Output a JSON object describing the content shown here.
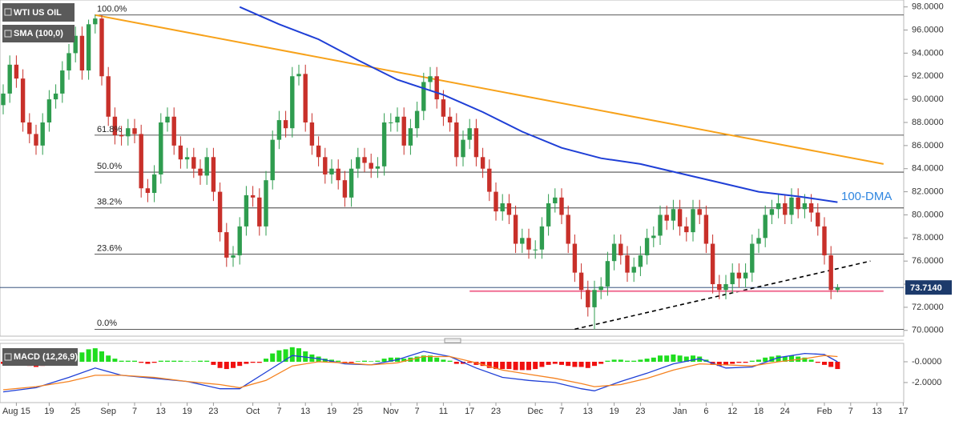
{
  "chart_data": [
    {
      "type": "candlestick",
      "title": "WTI US OIL",
      "categories": [
        null,
        null,
        "Aug 15",
        null,
        null,
        null,
        null,
        "19",
        null,
        null,
        null,
        "25",
        null,
        null,
        null,
        null,
        "Sep",
        null,
        null,
        null,
        "7",
        null,
        null,
        null,
        "13",
        null,
        null,
        null,
        "19",
        null,
        null,
        null,
        "23",
        null,
        null,
        null,
        null,
        null,
        "Oct",
        null,
        null,
        null,
        "7",
        null,
        null,
        null,
        "13",
        null,
        null,
        null,
        "19",
        null,
        null,
        null,
        "25",
        null,
        null,
        null,
        null,
        "Nov",
        null,
        null,
        null,
        "7",
        null,
        null,
        null,
        "11",
        null,
        null,
        null,
        "17",
        null,
        null,
        null,
        "23",
        null,
        null,
        null,
        null,
        null,
        "Dec",
        null,
        null,
        null,
        "7",
        null,
        null,
        null,
        "13",
        null,
        null,
        null,
        "19",
        null,
        null,
        null,
        "23",
        null,
        null,
        null,
        null,
        null,
        "Jan",
        null,
        null,
        null,
        "6",
        null,
        null,
        null,
        "12",
        null,
        null,
        null,
        "18",
        null,
        null,
        null,
        "24",
        null,
        null,
        null,
        null,
        null,
        "Feb",
        null,
        null,
        null,
        "7",
        null,
        null,
        null,
        "13",
        null,
        null,
        null,
        "17"
      ],
      "open": [
        89.5,
        90.5,
        93.0,
        91.8,
        88.0,
        87.0,
        86.0,
        88.0,
        90.0,
        90.5,
        92.5,
        94.0,
        95.5,
        92.5,
        96.5,
        97.0,
        92.0,
        88.5,
        86.9,
        86.8,
        87.5,
        87.0,
        82.3,
        81.9,
        83.5,
        88.0,
        88.5,
        86.0,
        84.8,
        85.0,
        84.0,
        83.4,
        85.0,
        82.0,
        78.5,
        76.3,
        76.5,
        79.0,
        81.7,
        81.5,
        79.0,
        83.0,
        86.5,
        88.2,
        87.5,
        92.0,
        92.2,
        88.0,
        86.0,
        85.0,
        83.5,
        84.0,
        83.0,
        81.5,
        84.0,
        85.0,
        84.5,
        84.0,
        84.2,
        88.0,
        88.0,
        88.5,
        86.0,
        87.5,
        89.0,
        91.5,
        92.0,
        90.0,
        88.5,
        88.0,
        85.0,
        86.5,
        87.5,
        85.0,
        84.0,
        82.0,
        80.3,
        81.0,
        80.0,
        77.5,
        78.0,
        77.0,
        77.0,
        79.0,
        81.0,
        81.5,
        80.0,
        77.5,
        75.0,
        73.5,
        72.0,
        73.5,
        73.8,
        76.0,
        77.5,
        76.5,
        75.0,
        75.5,
        76.5,
        78.0,
        78.2,
        80.0,
        79.5,
        80.5,
        79.0,
        78.5,
        80.5,
        80.0,
        77.5,
        74.0,
        73.5,
        74.0,
        75.0,
        74.5,
        75.0,
        77.5,
        78.0,
        80.0,
        80.5,
        81.0,
        80.0,
        81.5,
        80.5,
        81.0,
        80.2,
        79.0,
        76.5,
        73.5,
        null,
        null,
        null,
        null,
        null,
        null,
        null,
        null,
        null,
        null
      ],
      "high": [
        91.3,
        93.8,
        93.8,
        92.6,
        88.8,
        87.8,
        88.8,
        90.8,
        91.3,
        93.3,
        94.8,
        96.3,
        96.3,
        96.9,
        97.3,
        97.3,
        92.8,
        89.3,
        87.7,
        88.3,
        88.3,
        87.8,
        83.1,
        84.3,
        88.8,
        89.3,
        89.3,
        86.8,
        85.8,
        85.8,
        84.8,
        85.8,
        85.8,
        82.8,
        79.3,
        77.3,
        79.8,
        82.5,
        82.5,
        82.3,
        83.8,
        87.3,
        89.0,
        89.0,
        92.8,
        93.0,
        93.0,
        88.8,
        86.8,
        85.8,
        84.8,
        84.8,
        83.8,
        84.8,
        85.8,
        85.8,
        85.3,
        85.0,
        88.8,
        88.8,
        89.3,
        89.3,
        88.3,
        89.8,
        92.3,
        92.8,
        92.8,
        90.8,
        89.3,
        88.8,
        87.3,
        88.3,
        88.3,
        85.8,
        84.8,
        82.8,
        81.8,
        81.8,
        80.8,
        78.8,
        78.8,
        77.8,
        79.8,
        81.8,
        82.3,
        82.3,
        80.8,
        78.3,
        75.8,
        74.3,
        74.3,
        74.6,
        76.8,
        78.3,
        78.3,
        77.3,
        76.3,
        77.3,
        78.8,
        79.0,
        80.8,
        80.8,
        81.3,
        81.3,
        79.8,
        81.3,
        81.3,
        80.8,
        78.3,
        74.8,
        74.8,
        75.8,
        75.8,
        75.8,
        78.3,
        78.8,
        80.8,
        81.3,
        81.8,
        81.8,
        82.3,
        82.3,
        81.8,
        81.8,
        81.0,
        79.8,
        77.3,
        74.0,
        null,
        null,
        null,
        null,
        null,
        null,
        null,
        null,
        null,
        null
      ],
      "low": [
        88.7,
        89.7,
        91.0,
        87.2,
        86.2,
        85.2,
        85.2,
        87.2,
        89.2,
        89.7,
        91.7,
        93.2,
        91.7,
        91.7,
        95.7,
        91.2,
        87.7,
        86.1,
        86.0,
        86.0,
        86.2,
        81.5,
        81.1,
        81.1,
        82.7,
        87.2,
        85.2,
        84.0,
        84.0,
        83.2,
        82.6,
        82.6,
        81.2,
        77.7,
        75.5,
        75.5,
        75.7,
        78.2,
        80.7,
        78.2,
        78.2,
        82.2,
        85.7,
        86.7,
        86.7,
        91.2,
        87.2,
        85.2,
        84.2,
        82.7,
        82.7,
        82.2,
        80.7,
        80.7,
        83.2,
        83.7,
        83.2,
        83.2,
        83.4,
        87.2,
        87.2,
        85.2,
        85.2,
        86.7,
        88.2,
        90.7,
        89.2,
        87.7,
        87.2,
        84.2,
        84.2,
        85.7,
        84.2,
        83.2,
        81.2,
        79.5,
        79.5,
        79.2,
        76.7,
        76.7,
        76.2,
        76.2,
        76.2,
        78.2,
        80.2,
        79.2,
        76.7,
        74.2,
        72.7,
        71.2,
        70.1,
        72.7,
        73.0,
        75.2,
        75.7,
        74.2,
        74.2,
        74.7,
        75.7,
        77.2,
        77.4,
        78.7,
        78.7,
        78.2,
        77.7,
        77.7,
        79.2,
        76.7,
        73.2,
        72.7,
        72.7,
        73.2,
        73.7,
        73.7,
        74.2,
        76.7,
        77.2,
        79.2,
        79.7,
        79.2,
        79.2,
        79.7,
        79.7,
        79.4,
        78.2,
        75.7,
        72.7,
        73.3,
        null,
        null,
        null,
        null,
        null,
        null,
        null,
        null,
        null,
        null
      ],
      "close": [
        90.5,
        93.0,
        91.8,
        88.0,
        87.0,
        86.0,
        88.0,
        90.0,
        90.5,
        92.5,
        94.0,
        95.5,
        92.5,
        96.5,
        97.0,
        92.0,
        88.5,
        86.9,
        86.8,
        87.5,
        87.0,
        82.3,
        81.9,
        83.5,
        88.0,
        88.5,
        86.0,
        84.8,
        85.0,
        84.0,
        83.4,
        85.0,
        82.0,
        78.5,
        76.3,
        76.5,
        79.0,
        81.7,
        81.5,
        79.0,
        83.0,
        86.5,
        88.2,
        87.5,
        92.0,
        92.2,
        88.0,
        86.0,
        85.0,
        83.5,
        84.0,
        83.0,
        81.5,
        84.0,
        85.0,
        84.5,
        84.0,
        84.2,
        88.0,
        88.0,
        88.5,
        86.0,
        87.5,
        89.0,
        91.5,
        92.0,
        90.0,
        88.5,
        88.0,
        85.0,
        86.5,
        87.5,
        85.0,
        84.0,
        82.0,
        80.3,
        81.0,
        80.0,
        77.5,
        78.0,
        77.0,
        77.0,
        79.0,
        81.0,
        81.5,
        80.0,
        77.5,
        75.0,
        73.5,
        72.0,
        73.5,
        73.8,
        76.0,
        77.5,
        76.5,
        75.0,
        75.5,
        76.5,
        78.0,
        78.2,
        80.0,
        79.5,
        80.5,
        79.0,
        78.5,
        80.5,
        80.0,
        77.5,
        74.0,
        73.5,
        74.0,
        75.0,
        74.5,
        75.0,
        77.5,
        78.0,
        80.0,
        80.5,
        81.0,
        80.0,
        81.5,
        80.5,
        81.0,
        80.2,
        79.0,
        76.5,
        73.5,
        73.714,
        null,
        null,
        null,
        null,
        null,
        null,
        null,
        null,
        null,
        null
      ],
      "up_color": "#2f9c4f",
      "down_color": "#c8302a",
      "ylim": [
        69.5,
        98.6
      ],
      "yticks": [
        {
          "value": 70,
          "label": "70.0000"
        },
        {
          "value": 72,
          "label": "72.0000"
        },
        {
          "value": 74,
          "label": "74.0000"
        },
        {
          "value": 76,
          "label": "76.0000"
        },
        {
          "value": 78,
          "label": "78.0000"
        },
        {
          "value": 80,
          "label": "80.0000"
        },
        {
          "value": 82,
          "label": "82.0000"
        },
        {
          "value": 84,
          "label": "84.0000"
        },
        {
          "value": 86,
          "label": "86.0000"
        },
        {
          "value": 88,
          "label": "88.0000"
        },
        {
          "value": 90,
          "label": "90.0000"
        },
        {
          "value": 92,
          "label": "92.0000"
        },
        {
          "value": 94,
          "label": "94.0000"
        },
        {
          "value": 96,
          "label": "96.0000"
        },
        {
          "value": 98,
          "label": "98.0000"
        }
      ],
      "series": [
        {
          "name": "SMA (100,0)",
          "color": "#1f3fd6",
          "x": [
            36,
            42,
            48,
            54,
            60,
            67,
            73,
            79,
            85,
            91,
            97,
            103,
            109,
            115,
            121,
            127
          ],
          "values": [
            98.0,
            96.5,
            95.2,
            93.4,
            91.7,
            90.4,
            88.9,
            87.2,
            85.8,
            84.9,
            84.4,
            83.6,
            82.8,
            82.0,
            81.6,
            81.1
          ]
        }
      ],
      "annotation": "100-DMA",
      "fibonacci": [
        {
          "label": "100.0%",
          "value": 97.3
        },
        {
          "label": "61.8%",
          "value": 86.9
        },
        {
          "label": "50.0%",
          "value": 83.7
        },
        {
          "label": "38.2%",
          "value": 80.6
        },
        {
          "label": "23.6%",
          "value": 76.6
        },
        {
          "label": "0.0%",
          "value": 70.1
        }
      ],
      "trendlines": [
        {
          "x": [
            14,
            134
          ],
          "values": [
            97.3,
            84.4
          ],
          "color": "#f7a21b",
          "style": "solid"
        },
        {
          "x": [
            87,
            132
          ],
          "values": [
            70.1,
            76.0
          ],
          "color": "#000000",
          "style": "dashed"
        },
        {
          "x": [
            71,
            134
          ],
          "values": [
            73.4,
            73.4
          ],
          "color": "#f06f93",
          "style": "solid"
        }
      ],
      "last_price": {
        "value": 73.714,
        "label": "73.7140"
      }
    },
    {
      "type": "macd",
      "title": "MACD (12,26,9)",
      "histogram": [
        -0.2,
        -0.1,
        0.1,
        -0.3,
        -0.4,
        -0.5,
        -0.4,
        -0.3,
        -0.1,
        0.2,
        0.5,
        0.8,
        0.9,
        1.2,
        1.3,
        1.0,
        0.6,
        0.3,
        0.1,
        0.1,
        0.1,
        -0.1,
        -0.2,
        -0.1,
        0.1,
        0.1,
        0.1,
        0.1,
        0.05,
        0.05,
        0.1,
        0.1,
        -0.3,
        -0.6,
        -0.7,
        -0.6,
        -0.4,
        -0.2,
        -0.1,
        -0.1,
        0.3,
        0.8,
        1.1,
        1.2,
        1.4,
        1.3,
        1.0,
        0.7,
        0.5,
        0.3,
        0.2,
        0.1,
        -0.1,
        -0.1,
        0.05,
        0.1,
        0.05,
        0.1,
        0.3,
        0.4,
        0.4,
        0.3,
        0.4,
        0.5,
        0.6,
        0.6,
        0.4,
        0.2,
        0.1,
        -0.2,
        -0.2,
        -0.1,
        -0.3,
        -0.4,
        -0.6,
        -0.7,
        -0.7,
        -0.7,
        -0.8,
        -0.8,
        -0.8,
        -0.7,
        -0.5,
        -0.3,
        -0.2,
        -0.3,
        -0.4,
        -0.5,
        -0.5,
        -0.6,
        -0.4,
        -0.2,
        0.1,
        0.2,
        0.2,
        0.1,
        0.1,
        0.2,
        0.3,
        0.4,
        0.6,
        0.6,
        0.7,
        0.6,
        0.5,
        0.6,
        0.5,
        0.2,
        -0.3,
        -0.4,
        -0.3,
        -0.2,
        -0.1,
        -0.1,
        0.1,
        0.2,
        0.4,
        0.5,
        0.6,
        0.5,
        0.6,
        0.5,
        0.4,
        0.2,
        -0.1,
        -0.3,
        -0.5,
        -0.7,
        null,
        null,
        null,
        null,
        null,
        null,
        null,
        null,
        null,
        null
      ],
      "up_color": "#1fdd1f",
      "down_color": "#f01010",
      "series": [
        {
          "color": "#1f3fd6",
          "x": [
            0,
            5,
            10,
            14,
            18,
            23,
            28,
            33,
            36,
            40,
            44,
            48,
            52,
            56,
            60,
            64,
            68,
            72,
            76,
            80,
            84,
            88,
            90,
            94,
            98,
            102,
            106,
            110,
            114,
            118,
            122,
            125,
            127
          ],
          "values": [
            -2.9,
            -2.5,
            -1.5,
            -0.6,
            -1.3,
            -1.6,
            -1.9,
            -2.6,
            -2.6,
            -1.0,
            0.6,
            0.3,
            -0.2,
            -0.3,
            0.2,
            1.0,
            0.5,
            -0.6,
            -1.5,
            -1.8,
            -2.0,
            -2.6,
            -2.8,
            -1.9,
            -1.1,
            -0.2,
            0.3,
            -0.6,
            -0.5,
            0.4,
            0.8,
            0.7,
            0.0
          ]
        },
        {
          "color": "#f58220",
          "x": [
            0,
            5,
            10,
            14,
            18,
            23,
            28,
            33,
            36,
            40,
            44,
            48,
            52,
            56,
            60,
            64,
            68,
            72,
            76,
            80,
            84,
            88,
            90,
            94,
            98,
            102,
            106,
            110,
            114,
            118,
            122,
            125,
            127
          ],
          "values": [
            -2.7,
            -2.4,
            -1.9,
            -1.3,
            -1.3,
            -1.5,
            -1.9,
            -2.2,
            -2.5,
            -1.8,
            -0.4,
            0.0,
            -0.1,
            -0.3,
            -0.1,
            0.5,
            0.5,
            -0.1,
            -0.8,
            -1.2,
            -1.6,
            -2.1,
            -2.4,
            -2.2,
            -1.6,
            -0.8,
            -0.2,
            -0.3,
            -0.4,
            0.0,
            0.3,
            0.6,
            0.5
          ]
        }
      ],
      "ylim": [
        -3.7,
        1.54
      ],
      "yticks": [
        {
          "value": 0,
          "label": "-0.0000"
        },
        {
          "value": -2,
          "label": "-2.0000"
        }
      ]
    }
  ]
}
